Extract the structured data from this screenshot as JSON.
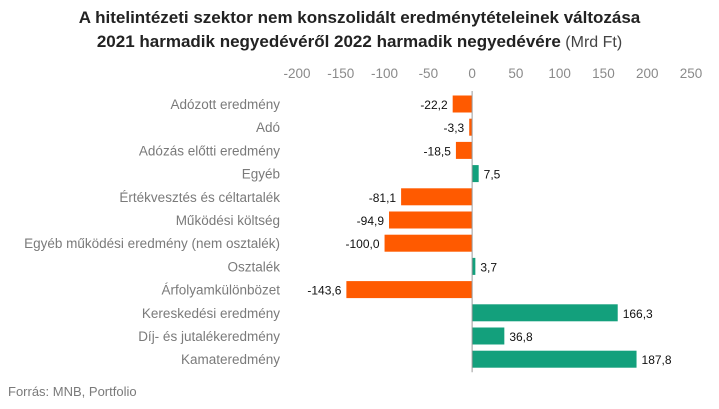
{
  "chart_data": {
    "type": "bar",
    "orientation": "horizontal",
    "title_line1": "A hitelintézeti szektor nem konszolidált eredménytételeinek változása",
    "title_line2": "2021 harmadik negyedévéről 2022 harmadik negyedévére",
    "title_unit": "(Mrd Ft)",
    "categories": [
      "Adózott eredmény",
      "Adó",
      "Adózás előtti eredmény",
      "Egyéb",
      "Értékvesztés és céltartalék",
      "Működési költség",
      "Egyéb működési eredmény (nem osztalék)",
      "Osztalék",
      "Árfolyamkülönbözet",
      "Kereskedési eredmény",
      "Díj- és jutalékeredmény",
      "Kamateredmény"
    ],
    "values": [
      -22.2,
      -3.3,
      -18.5,
      7.5,
      -81.1,
      -94.9,
      -100.0,
      3.7,
      -143.6,
      166.3,
      36.8,
      187.8
    ],
    "value_labels": [
      "-22,2",
      "-3,3",
      "-18,5",
      "7,5",
      "-81,1",
      "-94,9",
      "-100,0",
      "3,7",
      "-143,6",
      "166,3",
      "36,8",
      "187,8"
    ],
    "xlim": [
      -200,
      250
    ],
    "xticks": [
      -200,
      -150,
      -100,
      -50,
      0,
      50,
      100,
      150,
      200,
      250
    ],
    "xtick_labels": [
      "-200",
      "-150",
      "-100",
      "-50",
      "0",
      "50",
      "100",
      "150",
      "200",
      "250"
    ],
    "x_axis_position": "top",
    "grid": false,
    "legend": "none",
    "colors": {
      "positive": "#13a07c",
      "negative": "#ff5a00",
      "zero_line": "#9a9a9a"
    }
  },
  "source": "Forrás: MNB, Portfolio"
}
